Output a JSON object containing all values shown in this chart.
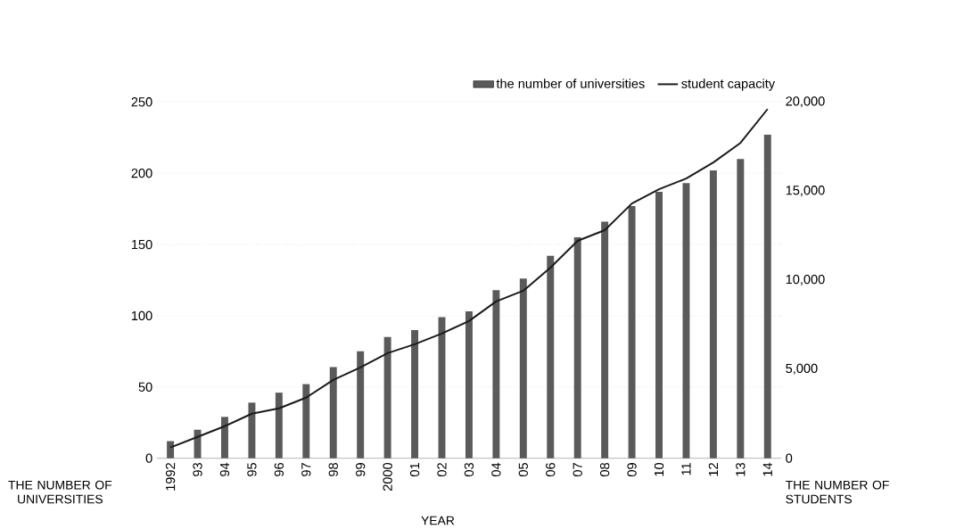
{
  "chart_data": {
    "type": "bar",
    "xlabel": "YEAR",
    "ylabel": "THE NUMBER OF UNIVERSITIES",
    "y2label": "THE NUMBER OF STUDENTS",
    "categories": [
      "1992",
      "93",
      "94",
      "95",
      "96",
      "97",
      "98",
      "99",
      "2000",
      "01",
      "02",
      "03",
      "04",
      "05",
      "06",
      "07",
      "08",
      "09",
      "10",
      "11",
      "12",
      "13",
      "14"
    ],
    "series": [
      {
        "name": "the number of universities",
        "color": "#5a5a5a",
        "values": [
          12,
          20,
          29,
          39,
          46,
          52,
          64,
          75,
          85,
          90,
          99,
          103,
          118,
          126,
          142,
          155,
          166,
          177,
          187,
          193,
          202,
          210,
          227
        ]
      },
      {
        "name": "student capacity",
        "type": "line",
        "axis": "y2",
        "color": "#1a1a1a",
        "values": [
          600,
          1200,
          1800,
          2500,
          2800,
          3400,
          4400,
          5100,
          5900,
          6400,
          7000,
          7700,
          8800,
          9400,
          10700,
          12200,
          12800,
          14300,
          15100,
          15700,
          16600,
          17700,
          19600
        ]
      }
    ],
    "ylim": [
      0,
      250
    ],
    "yticks": [
      0,
      50,
      100,
      150,
      200,
      250
    ],
    "y2lim": [
      0,
      20000
    ],
    "y2ticks": [
      0,
      {
        "value": 5000,
        "label": "5,000"
      },
      {
        "value": 10000,
        "label": "10,000"
      },
      {
        "value": 15000,
        "label": "15,000"
      },
      {
        "value": 20000,
        "label": "20,000"
      }
    ],
    "grid": "y",
    "legend": "top right"
  }
}
